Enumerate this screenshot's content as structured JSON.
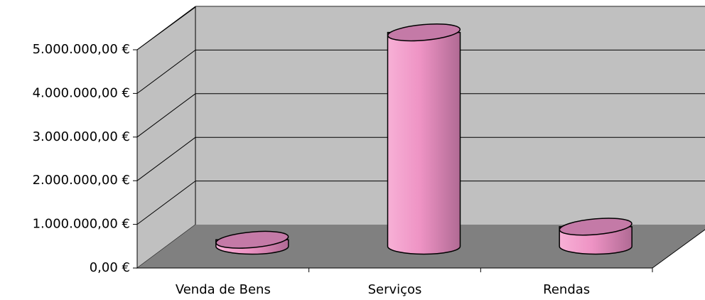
{
  "chart_data": {
    "type": "bar",
    "categories": [
      "Venda de Bens",
      "Serviços",
      "Rendas"
    ],
    "values": [
      150000,
      4900000,
      450000
    ],
    "color": "#f29ccb",
    "ylim": [
      0,
      5000000
    ],
    "yticks": [
      {
        "value": 0,
        "label": "0,00 €"
      },
      {
        "value": 1000000,
        "label": "1.000.000,00 €"
      },
      {
        "value": 2000000,
        "label": "2.000.000,00 €"
      },
      {
        "value": 3000000,
        "label": "3.000.000,00 €"
      },
      {
        "value": 4000000,
        "label": "4.000.000,00 €"
      },
      {
        "value": 5000000,
        "label": "5.000.000,00 €"
      }
    ],
    "grid": true
  }
}
